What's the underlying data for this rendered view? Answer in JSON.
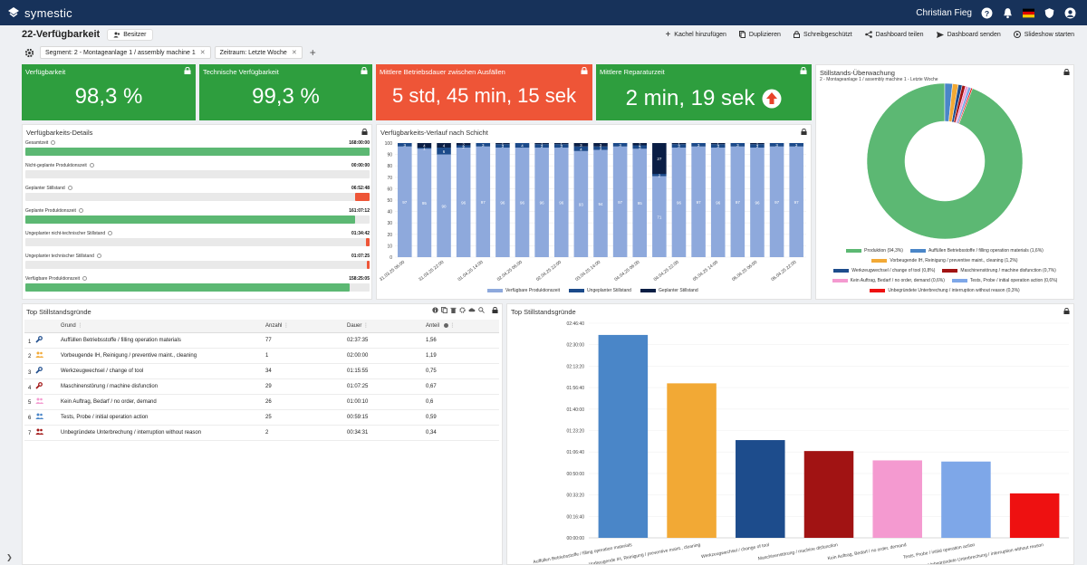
{
  "app": {
    "name": "symestic",
    "user": "Christian Fieg"
  },
  "dashboard": {
    "title": "22-Verfügbarkeit",
    "owner": "Besitzer",
    "actions": [
      "Kachel hinzufügen",
      "Duplizieren",
      "Schreibgeschützt",
      "Dashboard teilen",
      "Dashboard senden",
      "Slideshow starten"
    ]
  },
  "filters": [
    {
      "label": "Segment: 2 - Montageanlage 1 / assembly machine 1"
    },
    {
      "label": "Zeitraum: Letzte Woche"
    }
  ],
  "kpis": [
    {
      "label": "Verfügbarkeit",
      "value": "98,3 %",
      "color": "#2e9e3e"
    },
    {
      "label": "Technische Verfügbarkeit",
      "value": "99,3 %",
      "color": "#2e9e3e"
    },
    {
      "label": "Mittlere Betriebsdauer zwischen Ausfällen",
      "value": "5 std, 45 min, 15 sek",
      "color": "#ee5537"
    },
    {
      "label": "Mittlere Reparaturzeit",
      "value": "2 min, 19 sek",
      "color": "#2e9e3e"
    }
  ],
  "details": {
    "title": "Verfügbarkeits-Details",
    "rows": [
      {
        "label": "Gesamtzeit",
        "value": "168:00:00",
        "fraction": 1.0,
        "color": "#5cb873"
      },
      {
        "label": "Nicht-geplante Produktionszeit",
        "value": "00:00:00",
        "fraction": 0.0,
        "color": "#5cb873"
      },
      {
        "label": "Geplanter Stillstand",
        "value": "06:52:48",
        "fraction": 0.041,
        "color": "#ee5537"
      },
      {
        "label": "Geplante Produktionszeit",
        "value": "161:07:12",
        "fraction": 0.959,
        "color": "#5cb873"
      },
      {
        "label": "Ungeplanter nicht-technischer Stillstand",
        "value": "01:34:42",
        "fraction": 0.0094,
        "color": "#ee5537"
      },
      {
        "label": "Ungeplanter technischer Stillstand",
        "value": "01:07:25",
        "fraction": 0.0067,
        "color": "#ee5537"
      },
      {
        "label": "Verfügbare Produktionszeit",
        "value": "158:25:05",
        "fraction": 0.943,
        "color": "#5cb873"
      }
    ]
  },
  "shift_chart": {
    "title": "Verfügbarkeits-Verlauf nach Schicht",
    "legend": [
      "Verfügbare Produktionszeit",
      "Ungeplanter Stillstand",
      "Geplanter Stillstand"
    ]
  },
  "donut_panel": {
    "title": "Stillstands-Überwachung",
    "subtitle": "2 - Montageanlage 1 / assembly machine 1 - Letzte Woche"
  },
  "donut_legend": [
    {
      "label": "Produktion (94,3%)",
      "color": "#5cb873"
    },
    {
      "label": "Auffüllen Betriebsstoffe / filling operation materials (1,6%)",
      "color": "#4a86c8"
    },
    {
      "label": "Vorbeugende IH, Reinigung / preventive maint., cleaning (1,2%)",
      "color": "#f2a935"
    },
    {
      "label": "Werkzeugwechsel / change of tool (0,8%)",
      "color": "#1d4c8c"
    },
    {
      "label": "Maschinenstörung / machine disfunction (0,7%)",
      "color": "#a11313"
    },
    {
      "label": "Kein Auftrag, Bedarf / no order, demand (0,6%)",
      "color": "#f49ad0"
    },
    {
      "label": "Tests, Probe / initial operation action (0,6%)",
      "color": "#7ea7e8"
    },
    {
      "label": "Unbegründete Unterbrechung / interruption without reason (0,3%)",
      "color": "#ee1111"
    }
  ],
  "top_table": {
    "title": "Top Stillstandsgründe",
    "columns": [
      "Grund",
      "Anzahl",
      "Dauer",
      "Anteil"
    ],
    "rows": [
      {
        "rank": "1",
        "grund": "Auffüllen Betriebsstoffe / filling operation materials",
        "anzahl": "77",
        "dauer": "02:37:35",
        "anteil": "1,56"
      },
      {
        "rank": "2",
        "grund": "Vorbeugende IH, Reinigung / preventive maint., cleaning",
        "anzahl": "1",
        "dauer": "02:00:00",
        "anteil": "1,19"
      },
      {
        "rank": "3",
        "grund": "Werkzeugwechsel / change of tool",
        "anzahl": "34",
        "dauer": "01:15:55",
        "anteil": "0,75"
      },
      {
        "rank": "4",
        "grund": "Maschinenstörung / machine disfunction",
        "anzahl": "29",
        "dauer": "01:07:25",
        "anteil": "0,67"
      },
      {
        "rank": "5",
        "grund": "Kein Auftrag, Bedarf / no order, demand",
        "anzahl": "26",
        "dauer": "01:00:10",
        "anteil": "0,6"
      },
      {
        "rank": "6",
        "grund": "Tests, Probe / initial operation action",
        "anzahl": "25",
        "dauer": "00:59:15",
        "anteil": "0,59"
      },
      {
        "rank": "7",
        "grund": "Unbegründete Unterbrechung / interruption without reason",
        "anzahl": "2",
        "dauer": "00:34:31",
        "anteil": "0,34"
      }
    ]
  },
  "top_chart_title": "Top Stillstandsgründe",
  "chart_data": [
    {
      "type": "bar",
      "title": "Verfügbarkeits-Verlauf nach Schicht",
      "stacked": true,
      "ylim": [
        0,
        100
      ],
      "yticks": [
        0,
        10,
        20,
        30,
        40,
        50,
        60,
        70,
        80,
        90,
        100
      ],
      "categories": [
        "31.03.25 06:00",
        "31.03.25 14:00",
        "31.03.25 22:00",
        "01.04.25 06:00",
        "01.04.25 14:00",
        "01.04.25 22:00",
        "02.04.25 06:00",
        "02.04.25 14:00",
        "02.04.25 22:00",
        "03.04.25 06:00",
        "03.04.25 14:00",
        "03.04.25 22:00",
        "04.04.25 06:00",
        "04.04.25 14:00",
        "04.04.25 22:00",
        "05.04.25 06:00",
        "05.04.25 14:00",
        "05.04.25 22:00",
        "06.04.25 06:00",
        "06.04.25 14:00",
        "06.04.25 22:00"
      ],
      "xlabels": [
        "31.03.25 06:00",
        "31.03.25 22:00",
        "01.04.25 14:00",
        "02.04.25 06:00",
        "02.04.25 22:00",
        "03.04.25 14:00",
        "04.04.25 06:00",
        "04.04.25 22:00",
        "05.04.25 14:00",
        "06.04.25 06:00",
        "06.04.25 22:00"
      ],
      "series": [
        {
          "name": "Verfügbare Produktionszeit",
          "color": "#8ea9dc",
          "values": [
            97,
            95,
            90,
            96,
            97,
            96,
            96,
            96,
            96,
            93,
            94,
            97,
            95,
            71,
            96,
            97,
            96,
            97,
            96,
            97,
            97
          ]
        },
        {
          "name": "Ungeplanter Stillstand",
          "color": "#1b4a8a",
          "values": [
            3,
            1,
            6,
            2,
            3,
            3,
            4,
            3,
            3,
            4,
            3,
            3,
            3,
            2,
            3,
            3,
            3,
            3,
            3,
            3,
            3
          ]
        },
        {
          "name": "Geplanter Stillstand",
          "color": "#0a1e45",
          "values": [
            0,
            4,
            4,
            2,
            0,
            1,
            0,
            1,
            1,
            3,
            3,
            0,
            2,
            27,
            1,
            0,
            1,
            0,
            1,
            0,
            0
          ]
        }
      ]
    },
    {
      "type": "pie",
      "title": "Stillstands-Überwachung",
      "donut": true,
      "labels": [
        "Produktion",
        "Auffüllen Betriebsstoffe / filling operation materials",
        "Vorbeugende IH, Reinigung / preventive maint., cleaning",
        "Werkzeugwechsel / change of tool",
        "Maschinenstörung / machine disfunction",
        "Kein Auftrag, Bedarf / no order, demand",
        "Tests, Probe / initial operation action",
        "Unbegründete Unterbrechung / interruption without reason"
      ],
      "values": [
        94.3,
        1.6,
        1.2,
        0.8,
        0.7,
        0.6,
        0.6,
        0.3
      ],
      "colors": [
        "#5cb873",
        "#4a86c8",
        "#f2a935",
        "#1d4c8c",
        "#a11313",
        "#f49ad0",
        "#7ea7e8",
        "#ee1111"
      ]
    },
    {
      "type": "bar",
      "title": "Top Stillstandsgründe",
      "unit": "seconds",
      "categories": [
        "Auffüllen Betriebsstoffe / filling operation materials",
        "Vorbeugende IH, Reinigung / preventive maint., cleaning",
        "Werkzeugwechsel / change of tool",
        "Maschinenstörung / machine disfunction",
        "Kein Auftrag, Bedarf / no order, demand",
        "Tests, Probe / initial operation action",
        "Unbegründete Unterbrechung / interruption without reason"
      ],
      "values": [
        9455,
        7200,
        4555,
        4045,
        3610,
        3555,
        2071
      ],
      "colors": [
        "#4a86c8",
        "#f2a935",
        "#1d4c8c",
        "#a11313",
        "#f49ad0",
        "#7ea7e8",
        "#ee1111"
      ],
      "ylim": [
        0,
        10000
      ],
      "yticks": [
        "00:00:00",
        "00:16:40",
        "00:33:20",
        "00:50:00",
        "01:06:40",
        "01:23:20",
        "01:40:00",
        "01:56:40",
        "02:13:20",
        "02:30:00",
        "02:46:40"
      ]
    }
  ]
}
